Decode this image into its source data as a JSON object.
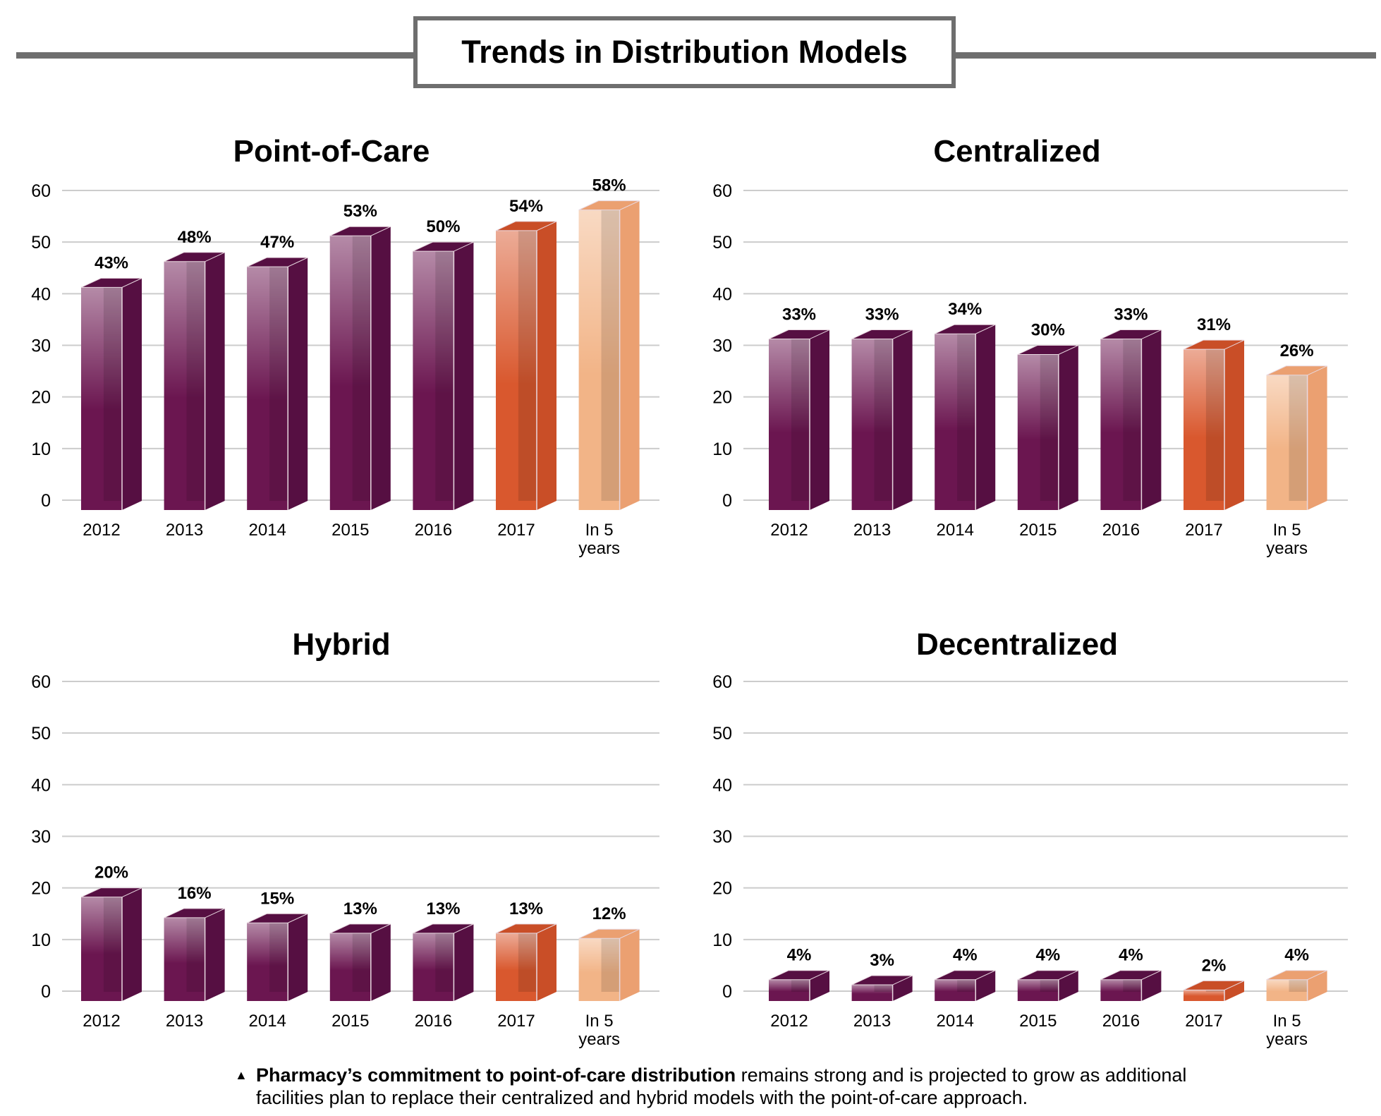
{
  "title": "Trends in Distribution Models",
  "footer": {
    "bold": "Pharmacy’s commitment to point-of-care distribution",
    "rest": " remains strong and is projected to grow as additional facilities plan to replace their centralized and hybrid models with the point-of-care approach.",
    "bullet_icon": "triangle-up"
  },
  "colors": {
    "purple": "#6b1650",
    "purple_side": "#560f42",
    "orange": "#d9582e",
    "orange_side": "#c94e27",
    "peach": "#f2b487",
    "peach_side": "#eba071",
    "grid": "#cccccc"
  },
  "chart_data": [
    {
      "type": "bar",
      "title": "Point-of-Care",
      "categories": [
        "2012",
        "2013",
        "2014",
        "2015",
        "2016",
        "2017",
        "In 5 years"
      ],
      "values": [
        43,
        48,
        47,
        53,
        50,
        54,
        58
      ],
      "labels": [
        "43%",
        "48%",
        "47%",
        "53%",
        "50%",
        "54%",
        "58%"
      ],
      "ylim": [
        0,
        60
      ],
      "yticks": [
        0,
        10,
        20,
        30,
        40,
        50,
        60
      ],
      "grid": true
    },
    {
      "type": "bar",
      "title": "Centralized",
      "categories": [
        "2012",
        "2013",
        "2014",
        "2015",
        "2016",
        "2017",
        "In 5 years"
      ],
      "values": [
        33,
        33,
        34,
        30,
        33,
        31,
        26
      ],
      "labels": [
        "33%",
        "33%",
        "34%",
        "30%",
        "33%",
        "31%",
        "26%"
      ],
      "ylim": [
        0,
        60
      ],
      "yticks": [
        0,
        10,
        20,
        30,
        40,
        50,
        60
      ],
      "grid": true
    },
    {
      "type": "bar",
      "title": "Hybrid",
      "categories": [
        "2012",
        "2013",
        "2014",
        "2015",
        "2016",
        "2017",
        "In 5 years"
      ],
      "values": [
        20,
        16,
        15,
        13,
        13,
        13,
        12
      ],
      "labels": [
        "20%",
        "16%",
        "15%",
        "13%",
        "13%",
        "13%",
        "12%"
      ],
      "ylim": [
        0,
        60
      ],
      "yticks": [
        0,
        10,
        20,
        30,
        40,
        50,
        60
      ],
      "grid": true
    },
    {
      "type": "bar",
      "title": "Decentralized",
      "categories": [
        "2012",
        "2013",
        "2014",
        "2015",
        "2016",
        "2017",
        "In 5 years"
      ],
      "values": [
        4,
        3,
        4,
        4,
        4,
        2,
        4
      ],
      "labels": [
        "4%",
        "3%",
        "4%",
        "4%",
        "4%",
        "2%",
        "4%"
      ],
      "ylim": [
        0,
        60
      ],
      "yticks": [
        0,
        10,
        20,
        30,
        40,
        50,
        60
      ],
      "grid": true
    }
  ]
}
